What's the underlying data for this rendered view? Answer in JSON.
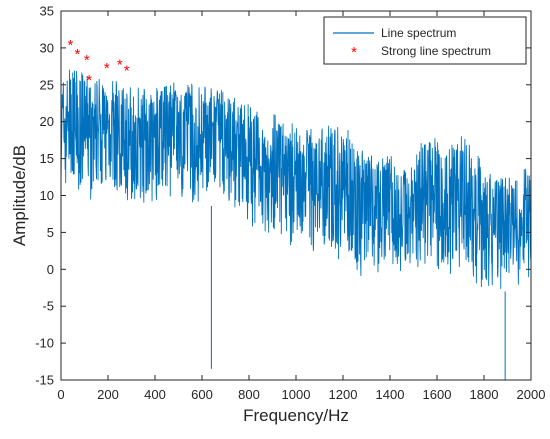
{
  "chart_data": {
    "type": "line",
    "xlabel": "Frequency/Hz",
    "ylabel": "Amplitude/dB",
    "xlim": [
      0,
      2000
    ],
    "ylim": [
      -15,
      35
    ],
    "xticks": [
      0,
      200,
      400,
      600,
      800,
      1000,
      1200,
      1400,
      1600,
      1800,
      2000
    ],
    "yticks": [
      -15,
      -10,
      -5,
      0,
      5,
      10,
      15,
      20,
      25,
      30,
      35
    ],
    "grid": false,
    "legend_position": "top-right",
    "colors": {
      "line": "#0072BD",
      "marker": "#FF0000"
    },
    "series": [
      {
        "name": "Line spectrum",
        "style": "line",
        "envelope": {
          "x": [
            0,
            40,
            100,
            200,
            300,
            400,
            500,
            600,
            700,
            800,
            900,
            1000,
            1100,
            1200,
            1250,
            1300,
            1350,
            1400,
            1450,
            1500,
            1550,
            1600,
            1650,
            1700,
            1750,
            1800,
            1850,
            1900,
            1950,
            2000
          ],
          "upper": [
            25,
            26,
            25.5,
            25,
            24,
            23.5,
            24.5,
            24,
            23,
            21.5,
            20,
            18.5,
            18.5,
            18.5,
            17,
            14.5,
            14,
            16,
            13,
            13.5,
            17.5,
            16.5,
            16,
            17.5,
            15.5,
            13,
            11,
            12,
            12,
            13
          ],
          "lower": [
            10,
            12,
            9,
            10,
            9,
            9,
            9,
            9,
            8,
            6,
            4,
            3,
            2,
            1,
            -1,
            -2,
            -1,
            0,
            -1,
            -1,
            0,
            -1,
            -1,
            0,
            -2,
            -3,
            -3,
            -3,
            -2,
            -1
          ]
        },
        "dips": [
          {
            "x": 640,
            "y": -13.5
          },
          {
            "x": 1890,
            "y": -15
          }
        ]
      },
      {
        "name": "Strong line spectrum",
        "style": "marker",
        "points": [
          {
            "x": 40,
            "y": 30.5
          },
          {
            "x": 70,
            "y": 29.3
          },
          {
            "x": 110,
            "y": 28.5
          },
          {
            "x": 120,
            "y": 25.8
          },
          {
            "x": 195,
            "y": 27.4
          },
          {
            "x": 250,
            "y": 27.9
          },
          {
            "x": 280,
            "y": 27.1
          }
        ]
      }
    ]
  }
}
